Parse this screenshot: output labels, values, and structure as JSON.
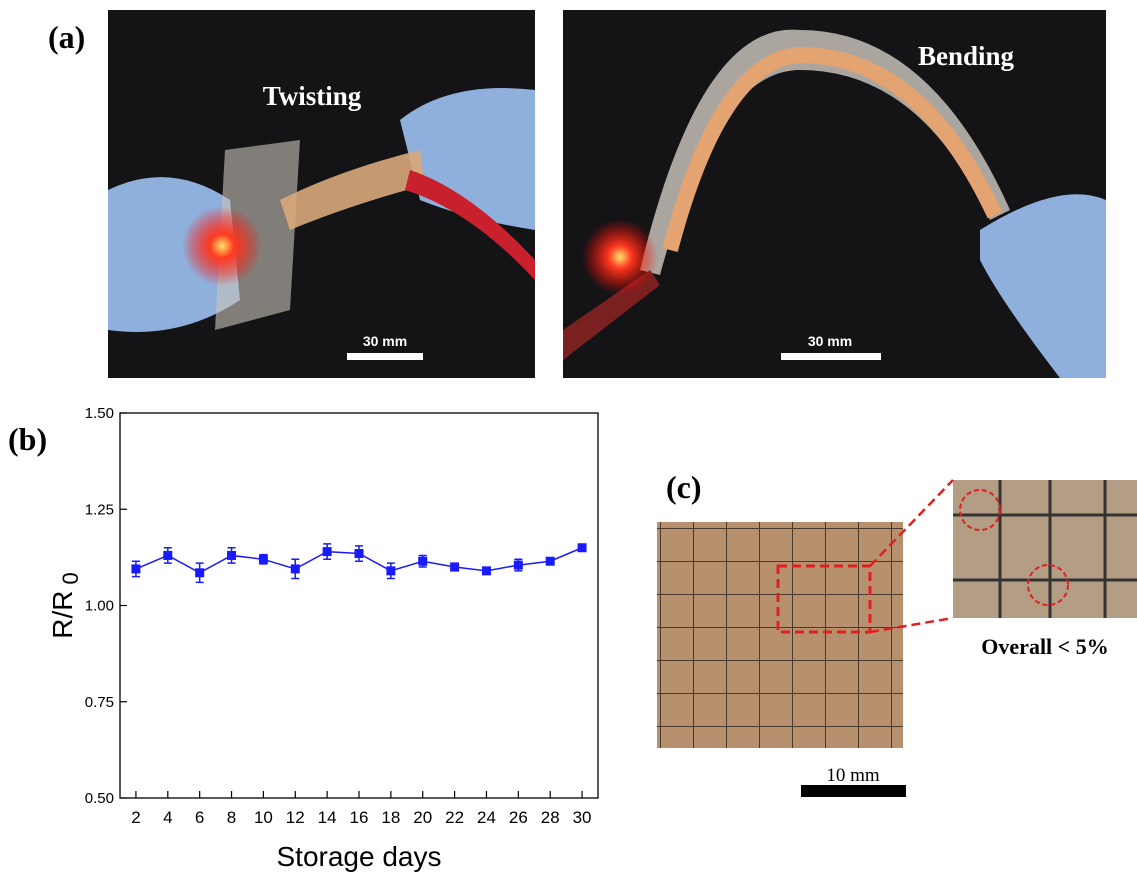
{
  "panels": {
    "a": {
      "label": "(a)",
      "left_caption": "Twisting",
      "left_scale": "30 mm",
      "right_caption": "Bending",
      "right_scale": "30 mm"
    },
    "b": {
      "label": "(b)"
    },
    "c": {
      "label": "(c)",
      "caption": "Overall < 5%",
      "scale": "10 mm"
    }
  },
  "chart_data": {
    "type": "line",
    "x_label": "Storage days",
    "y_label": "R/R",
    "y_label_sub": "0",
    "x": [
      2,
      4,
      6,
      8,
      10,
      12,
      14,
      16,
      18,
      20,
      22,
      24,
      26,
      28,
      30
    ],
    "values": [
      1.095,
      1.13,
      1.085,
      1.13,
      1.12,
      1.095,
      1.14,
      1.135,
      1.09,
      1.115,
      1.1,
      1.09,
      1.105,
      1.115,
      1.15
    ],
    "errors": [
      0.02,
      0.02,
      0.025,
      0.02,
      0.012,
      0.025,
      0.02,
      0.02,
      0.02,
      0.015,
      0.01,
      0.008,
      0.015,
      0.008,
      0.008
    ],
    "color": "#1a1aff",
    "xlim": [
      1,
      31
    ],
    "xticks": [
      2,
      4,
      6,
      8,
      10,
      12,
      14,
      16,
      18,
      20,
      22,
      24,
      26,
      28,
      30
    ],
    "ylim": [
      0.5,
      1.5
    ],
    "yticks": [
      {
        "value": 0.5,
        "label": "0.50"
      },
      {
        "value": 0.75,
        "label": "0.75"
      },
      {
        "value": 1.0,
        "label": "1.00"
      },
      {
        "value": 1.25,
        "label": "1.25"
      },
      {
        "value": 1.5,
        "label": "1.50"
      }
    ]
  }
}
